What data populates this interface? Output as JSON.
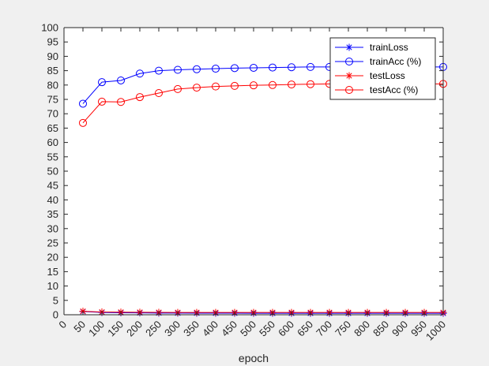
{
  "chart_data": {
    "type": "line",
    "xlabel": "epoch",
    "ylabel": "",
    "xlim": [
      0,
      1000
    ],
    "ylim": [
      0,
      100
    ],
    "x_ticks": [
      0,
      50,
      100,
      150,
      200,
      250,
      300,
      350,
      400,
      450,
      500,
      550,
      600,
      650,
      700,
      750,
      800,
      850,
      900,
      950,
      1000
    ],
    "y_ticks": [
      0,
      5,
      10,
      15,
      20,
      25,
      30,
      35,
      40,
      45,
      50,
      55,
      60,
      65,
      70,
      75,
      80,
      85,
      90,
      95,
      100
    ],
    "grid": false,
    "legend_position": "top-right",
    "x": [
      50,
      100,
      150,
      200,
      250,
      300,
      350,
      400,
      450,
      500,
      550,
      600,
      650,
      700,
      750,
      800,
      850,
      900,
      950,
      1000
    ],
    "series": [
      {
        "name": "trainLoss",
        "color": "#0000ff",
        "marker": "star",
        "values": [
          1.1,
          0.8,
          0.7,
          0.65,
          0.6,
          0.58,
          0.56,
          0.55,
          0.54,
          0.53,
          0.52,
          0.52,
          0.51,
          0.51,
          0.5,
          0.5,
          0.5,
          0.5,
          0.5,
          0.5
        ]
      },
      {
        "name": "trainAcc (%)",
        "color": "#0000ff",
        "marker": "circle",
        "values": [
          73.5,
          81.0,
          81.6,
          84.0,
          85.0,
          85.3,
          85.5,
          85.7,
          85.9,
          86.0,
          86.1,
          86.2,
          86.3,
          86.3,
          86.3,
          86.3,
          86.3,
          86.3,
          86.3,
          86.3
        ]
      },
      {
        "name": "testLoss",
        "color": "#ff0000",
        "marker": "star",
        "values": [
          1.2,
          0.95,
          0.9,
          0.85,
          0.82,
          0.8,
          0.8,
          0.8,
          0.8,
          0.8,
          0.8,
          0.8,
          0.8,
          0.8,
          0.8,
          0.8,
          0.8,
          0.8,
          0.8,
          0.8
        ]
      },
      {
        "name": "testAcc (%)",
        "color": "#ff0000",
        "marker": "circle",
        "values": [
          66.8,
          74.2,
          74.1,
          75.8,
          77.2,
          78.6,
          79.1,
          79.5,
          79.7,
          79.9,
          80.0,
          80.2,
          80.3,
          80.4,
          80.4,
          80.4,
          80.4,
          80.4,
          80.4,
          80.4
        ]
      }
    ]
  }
}
